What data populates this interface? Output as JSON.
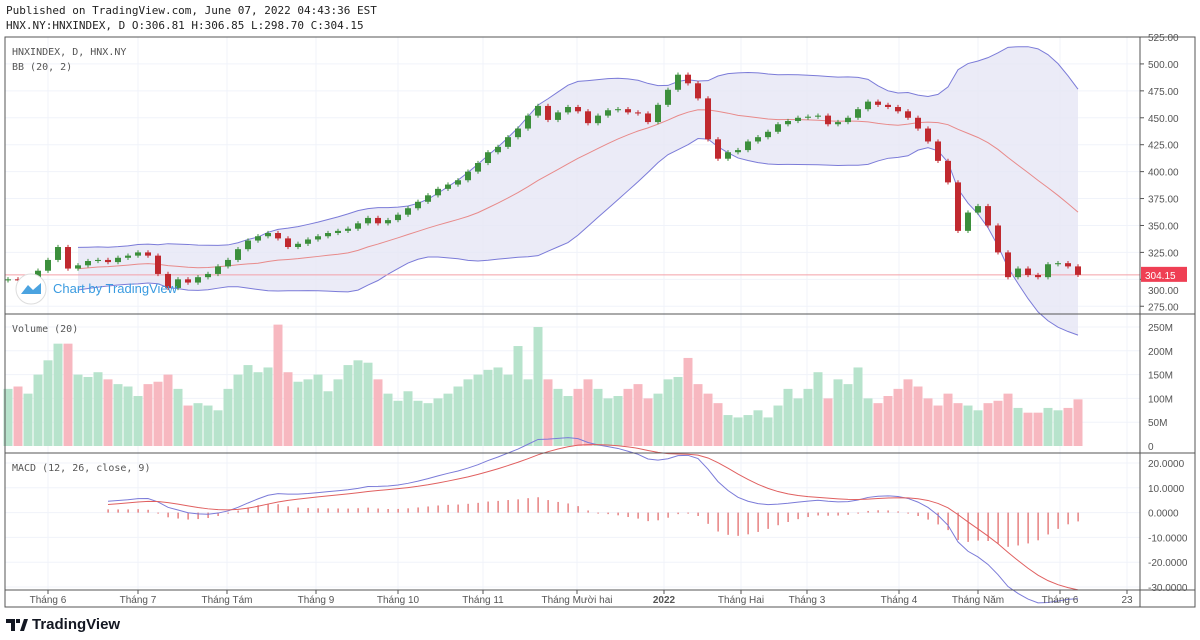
{
  "header": {
    "published": "Published on TradingView.com, June 07, 2022 04:43:36 EST",
    "ohlc": "HNX.NY:HNXINDEX, D O:306.81 H:306.85 L:298.70 C:304.15"
  },
  "legend": {
    "symbol": "HNXINDEX, D, HNX.NY",
    "bb": "BB (20, 2)",
    "volume": "Volume (20)",
    "macd": "MACD (12, 26, close, 9)"
  },
  "watermark": "Chart by TradingView",
  "brand": "TradingView",
  "colors": {
    "up": "#26a69a",
    "down": "#ef5350",
    "candle_up": "#3c8f3c",
    "candle_down": "#c0292f",
    "bb_fill": "#e6e6f5",
    "bb_band": "#7b7bd8",
    "bb_basis": "#e88a8a",
    "vol_up": "#b7e3cc",
    "vol_down": "#f7b8c0",
    "macd_line": "#7b7bd8",
    "signal_line": "#e06060",
    "last_price": "#ef3f54"
  },
  "chart_data": [
    {
      "type": "candlestick",
      "title": "HNXINDEX, D, HNX.NY",
      "ylim": [
        270,
        525
      ],
      "yticks": [
        "525.00",
        "500.00",
        "475.00",
        "450.00",
        "425.00",
        "400.00",
        "375.00",
        "350.00",
        "325.00",
        "300.00",
        "275.00"
      ],
      "last_price": "304.15",
      "grid": true,
      "close": [
        300,
        299,
        301,
        308,
        318,
        330,
        310,
        313,
        317,
        318,
        316,
        320,
        322,
        325,
        322,
        305,
        292,
        300,
        297,
        302,
        305,
        312,
        318,
        328,
        336,
        340,
        343,
        338,
        330,
        333,
        337,
        340,
        343,
        345,
        347,
        352,
        357,
        352,
        355,
        360,
        366,
        372,
        378,
        384,
        388,
        392,
        400,
        408,
        418,
        423,
        432,
        440,
        452,
        461,
        448,
        455,
        460,
        456,
        445,
        452,
        457,
        458,
        455,
        454,
        446,
        462,
        476,
        490,
        482,
        468,
        430,
        412,
        418,
        420,
        428,
        432,
        437,
        444,
        447,
        450,
        451,
        452,
        444,
        446,
        450,
        458,
        465,
        462,
        460,
        456,
        450,
        440,
        428,
        410,
        390,
        345,
        362,
        368,
        350,
        325,
        302,
        310,
        304,
        302,
        314,
        315,
        312,
        304.15
      ],
      "indicator": "BB (20, 2)"
    },
    {
      "type": "bar",
      "title": "Volume (20)",
      "ylim": [
        0,
        260
      ],
      "yticks": [
        "250M",
        "200M",
        "150M",
        "100M",
        "50M",
        "0"
      ],
      "values_millions": [
        120,
        125,
        110,
        150,
        180,
        215,
        215,
        150,
        145,
        155,
        140,
        130,
        125,
        105,
        130,
        135,
        150,
        120,
        85,
        90,
        85,
        75,
        120,
        150,
        170,
        155,
        165,
        255,
        155,
        135,
        140,
        150,
        115,
        140,
        170,
        180,
        175,
        140,
        110,
        95,
        115,
        95,
        90,
        100,
        110,
        125,
        140,
        150,
        160,
        165,
        150,
        210,
        140,
        250,
        140,
        120,
        105,
        120,
        140,
        120,
        100,
        105,
        120,
        130,
        100,
        110,
        140,
        145,
        185,
        130,
        110,
        90,
        65,
        60,
        65,
        75,
        60,
        85,
        120,
        100,
        120,
        155,
        100,
        140,
        130,
        165,
        100,
        90,
        105,
        120,
        140,
        125,
        100,
        85,
        110,
        90,
        85,
        75,
        90,
        95,
        110,
        80,
        70,
        70,
        80,
        75,
        80,
        98
      ]
    },
    {
      "type": "line",
      "title": "MACD (12, 26, close, 9)",
      "ylim": [
        -32,
        22
      ],
      "yticks": [
        "20.0000",
        "10.0000",
        "0.0000",
        "-10.0000",
        "-20.0000",
        "-30.0000"
      ]
    }
  ],
  "xaxis": {
    "ticks": [
      "Tháng 6",
      "Tháng 7",
      "Tháng Tám",
      "Tháng 9",
      "Tháng 10",
      "Tháng 11",
      "Tháng Mười hai",
      "2022",
      "Tháng Hai",
      "Tháng 3",
      "Tháng 4",
      "Tháng Năm",
      "Tháng 6",
      "23"
    ]
  }
}
